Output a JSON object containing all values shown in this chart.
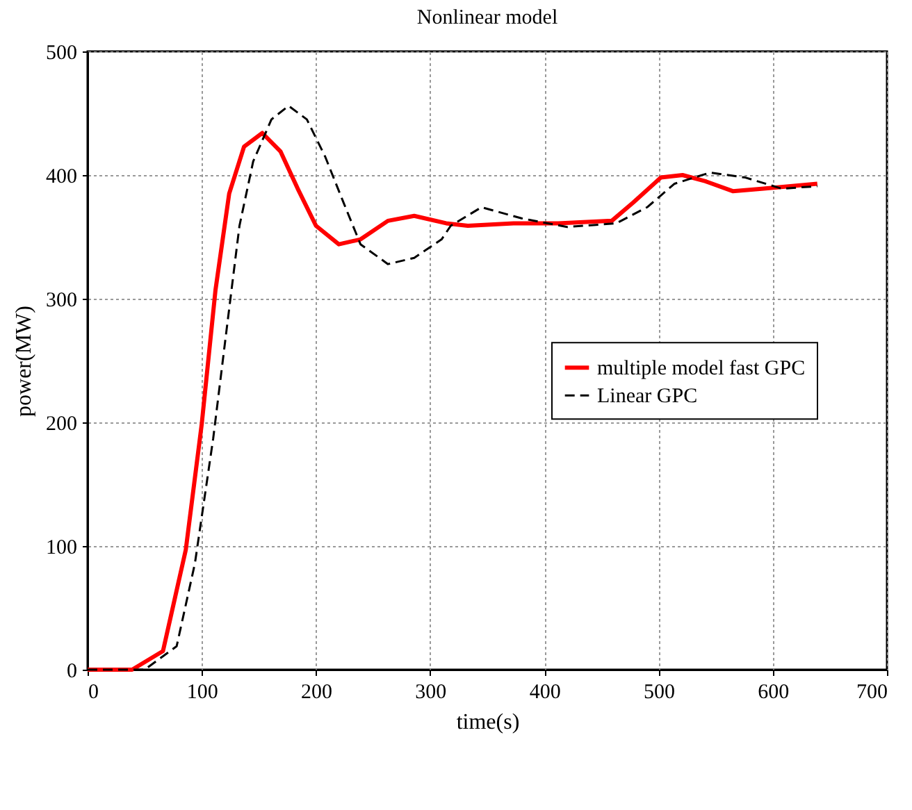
{
  "chart_data": {
    "type": "line",
    "title": "Nonlinear model",
    "xlabel": "time(s)",
    "ylabel": "power(MW)",
    "xlim": [
      0,
      700
    ],
    "xticks": [
      0,
      100,
      200,
      300,
      400,
      500,
      600,
      700
    ],
    "ylim": [
      0,
      500
    ],
    "yticks": [
      0,
      100,
      200,
      300,
      400,
      500
    ],
    "grid": true,
    "legend": "right",
    "series": [
      {
        "name": "multiple model fast GPC",
        "color": "#ff0000",
        "line_style": "solid",
        "x": [
          0,
          39,
          66,
          86,
          100,
          112,
          124,
          137,
          153,
          169,
          184,
          200,
          220,
          239,
          263,
          286,
          314,
          333,
          373,
          412,
          459,
          478,
          502,
          521,
          541,
          565,
          592,
          639
        ],
        "values": [
          0,
          0,
          15,
          97,
          199,
          307,
          385,
          423,
          434,
          419,
          389,
          359,
          344,
          348,
          363,
          367,
          361,
          359,
          361,
          361,
          363,
          378,
          398,
          400,
          395,
          387,
          389,
          393
        ]
      },
      {
        "name": "Linear GPC",
        "color": "#000000",
        "line_style": "dashed",
        "x": [
          0,
          50,
          78,
          94,
          110,
          122,
          133,
          145,
          161,
          176,
          192,
          208,
          224,
          239,
          263,
          286,
          310,
          318,
          345,
          380,
          420,
          463,
          490,
          514,
          545,
          576,
          608,
          639
        ],
        "values": [
          0,
          0,
          19,
          86,
          187,
          277,
          359,
          411,
          445,
          456,
          445,
          415,
          378,
          344,
          328,
          333,
          348,
          359,
          374,
          365,
          358,
          361,
          374,
          393,
          402,
          398,
          389,
          391
        ]
      }
    ]
  }
}
